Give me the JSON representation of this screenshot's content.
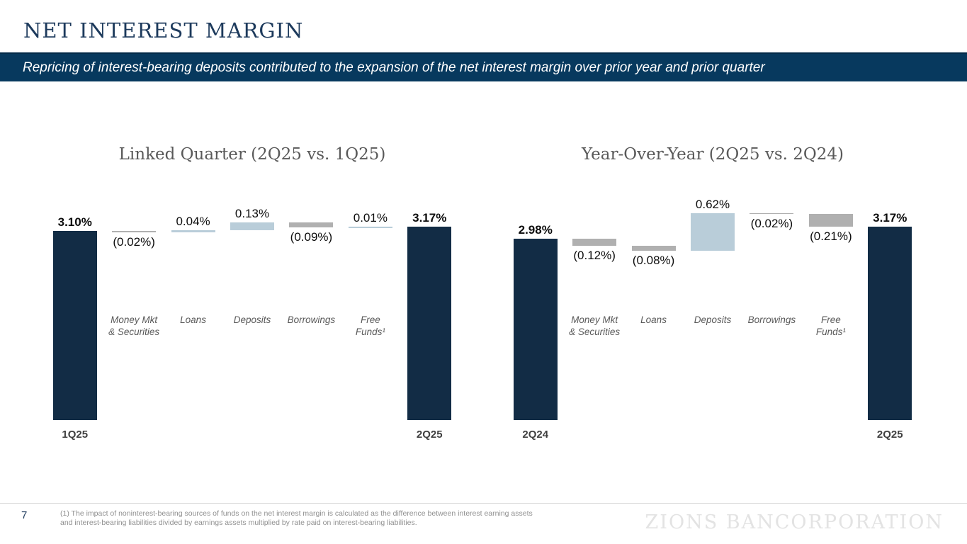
{
  "slide": {
    "title": "NET INTEREST MARGIN",
    "subtitle": "Repricing of interest-bearing deposits contributed to the expansion of the net interest margin over prior year and prior quarter",
    "page_number": "7",
    "footnote_line1": "(1) The impact of noninterest-bearing sources of funds on the net interest margin is calculated as the difference between interest earning assets",
    "footnote_line2": "and interest-bearing liabilities divided by earnings assets multiplied by rate paid on interest-bearing liabilities.",
    "logo_text": "ZIONS BANCORPORATION"
  },
  "colors": {
    "banner_bg": "#07395e",
    "total_bar": "#122c45",
    "positive_bar": "#b9cdd9",
    "negative_bar": "#b0b0b0"
  },
  "chart_data": [
    {
      "type": "bar",
      "subtype": "waterfall",
      "title": "Linked Quarter (2Q25 vs. 1Q25)",
      "ylim": [
        0,
        3.4
      ],
      "unit": "%",
      "steps": [
        {
          "kind": "total",
          "category": "1Q25",
          "category_lines": [
            "1Q25"
          ],
          "label": "3.10%",
          "value": 3.1
        },
        {
          "kind": "delta",
          "category": "Money Mkt & Securities",
          "category_lines": [
            "Money Mkt",
            "& Securities"
          ],
          "label": "(0.02%)",
          "value": -0.02
        },
        {
          "kind": "delta",
          "category": "Loans",
          "category_lines": [
            "Loans"
          ],
          "label": "0.04%",
          "value": 0.04
        },
        {
          "kind": "delta",
          "category": "Deposits",
          "category_lines": [
            "Deposits"
          ],
          "label": "0.13%",
          "value": 0.13
        },
        {
          "kind": "delta",
          "category": "Borrowings",
          "category_lines": [
            "Borrowings"
          ],
          "label": "(0.09%)",
          "value": -0.09
        },
        {
          "kind": "delta",
          "category": "Free Funds¹",
          "category_lines": [
            "Free",
            "Funds¹"
          ],
          "label": "0.01%",
          "value": 0.01
        },
        {
          "kind": "total",
          "category": "2Q25",
          "category_lines": [
            "2Q25"
          ],
          "label": "3.17%",
          "value": 3.17
        }
      ]
    },
    {
      "type": "bar",
      "subtype": "waterfall",
      "title": "Year-Over-Year (2Q25 vs. 2Q24)",
      "ylim": [
        0,
        3.4
      ],
      "unit": "%",
      "steps": [
        {
          "kind": "total",
          "category": "2Q24",
          "category_lines": [
            "2Q24"
          ],
          "label": "2.98%",
          "value": 2.98
        },
        {
          "kind": "delta",
          "category": "Money Mkt & Securities",
          "category_lines": [
            "Money Mkt",
            "& Securities"
          ],
          "label": "(0.12%)",
          "value": -0.12
        },
        {
          "kind": "delta",
          "category": "Loans",
          "category_lines": [
            "Loans"
          ],
          "label": "(0.08%)",
          "value": -0.08
        },
        {
          "kind": "delta",
          "category": "Deposits",
          "category_lines": [
            "Deposits"
          ],
          "label": "0.62%",
          "value": 0.62
        },
        {
          "kind": "delta",
          "category": "Borrowings",
          "category_lines": [
            "Borrowings"
          ],
          "label": "(0.02%)",
          "value": -0.02
        },
        {
          "kind": "delta",
          "category": "Free Funds¹",
          "category_lines": [
            "Free",
            "Funds¹"
          ],
          "label": "(0.21%)",
          "value": -0.21
        },
        {
          "kind": "total",
          "category": "2Q25",
          "category_lines": [
            "2Q25"
          ],
          "label": "3.17%",
          "value": 3.17
        }
      ]
    }
  ]
}
